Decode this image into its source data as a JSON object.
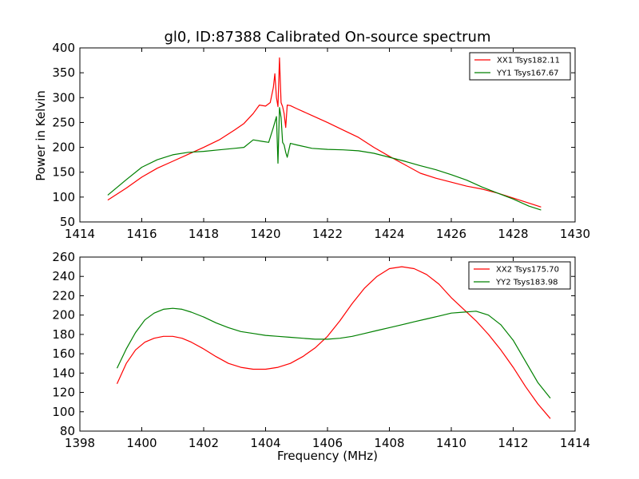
{
  "chart_data": [
    {
      "type": "line",
      "title": "gl0, ID:87388 Calibrated On-source spectrum",
      "xlabel": "",
      "ylabel": "Power in Kelvin",
      "xlim": [
        1414,
        1430
      ],
      "ylim": [
        50,
        400
      ],
      "xticks": [
        1414,
        1416,
        1418,
        1420,
        1422,
        1424,
        1426,
        1428,
        1430
      ],
      "yticks": [
        50,
        100,
        150,
        200,
        250,
        300,
        350,
        400
      ],
      "legend_position": "top-right",
      "grid": false,
      "series": [
        {
          "name": "XX1 Tsys182.11",
          "color": "#ff0000",
          "x": [
            1414.9,
            1415.5,
            1416.0,
            1416.5,
            1417.0,
            1417.5,
            1418.0,
            1418.5,
            1419.0,
            1419.3,
            1419.6,
            1419.8,
            1420.0,
            1420.15,
            1420.25,
            1420.3,
            1420.35,
            1420.4,
            1420.45,
            1420.5,
            1420.55,
            1420.6,
            1420.65,
            1420.7,
            1420.8,
            1421.0,
            1421.5,
            1422.0,
            1422.5,
            1423.0,
            1423.5,
            1424.0,
            1424.5,
            1425.0,
            1425.5,
            1426.0,
            1426.5,
            1427.0,
            1427.5,
            1428.0,
            1428.5,
            1428.9
          ],
          "y": [
            94,
            118,
            140,
            158,
            172,
            186,
            200,
            215,
            235,
            248,
            268,
            285,
            283,
            290,
            320,
            348,
            300,
            282,
            380,
            290,
            282,
            268,
            240,
            285,
            284,
            278,
            264,
            250,
            235,
            220,
            200,
            182,
            165,
            148,
            138,
            130,
            122,
            116,
            108,
            98,
            88,
            80
          ]
        },
        {
          "name": "YY1 Tsys167.67",
          "color": "#008000",
          "x": [
            1414.9,
            1415.5,
            1416.0,
            1416.5,
            1417.0,
            1417.5,
            1418.0,
            1418.5,
            1419.0,
            1419.3,
            1419.6,
            1419.9,
            1420.1,
            1420.25,
            1420.35,
            1420.4,
            1420.45,
            1420.5,
            1420.55,
            1420.6,
            1420.65,
            1420.7,
            1420.8,
            1421.0,
            1421.5,
            1422.0,
            1422.5,
            1423.0,
            1423.5,
            1424.0,
            1424.5,
            1425.0,
            1425.5,
            1426.0,
            1426.5,
            1427.0,
            1427.5,
            1428.0,
            1428.5,
            1428.9
          ],
          "y": [
            104,
            135,
            160,
            175,
            185,
            190,
            192,
            195,
            198,
            200,
            215,
            212,
            210,
            240,
            262,
            168,
            280,
            260,
            210,
            205,
            190,
            180,
            208,
            205,
            198,
            196,
            195,
            193,
            188,
            180,
            172,
            163,
            155,
            145,
            134,
            120,
            108,
            96,
            82,
            74
          ]
        }
      ]
    },
    {
      "type": "line",
      "title": "",
      "xlabel": "Frequency (MHz)",
      "ylabel": "",
      "xlim": [
        1398,
        1414
      ],
      "ylim": [
        80,
        260
      ],
      "xticks": [
        1398,
        1400,
        1402,
        1404,
        1406,
        1408,
        1410,
        1412,
        1414
      ],
      "yticks": [
        80,
        100,
        120,
        140,
        160,
        180,
        200,
        220,
        240,
        260
      ],
      "legend_position": "top-right",
      "grid": false,
      "series": [
        {
          "name": "XX2 Tsys175.70",
          "color": "#ff0000",
          "x": [
            1399.2,
            1399.5,
            1399.8,
            1400.1,
            1400.4,
            1400.7,
            1401.0,
            1401.3,
            1401.6,
            1402.0,
            1402.4,
            1402.8,
            1403.2,
            1403.6,
            1404.0,
            1404.4,
            1404.8,
            1405.2,
            1405.6,
            1406.0,
            1406.4,
            1406.8,
            1407.2,
            1407.6,
            1408.0,
            1408.4,
            1408.8,
            1409.2,
            1409.6,
            1410.0,
            1410.4,
            1410.8,
            1411.2,
            1411.6,
            1412.0,
            1412.4,
            1412.8,
            1413.2
          ],
          "y": [
            129,
            150,
            164,
            172,
            176,
            178,
            178,
            176,
            172,
            165,
            157,
            150,
            146,
            144,
            144,
            146,
            150,
            157,
            166,
            178,
            194,
            212,
            228,
            240,
            248,
            250,
            248,
            242,
            232,
            218,
            206,
            194,
            180,
            164,
            146,
            126,
            108,
            93
          ]
        },
        {
          "name": "YY2 Tsys183.98",
          "color": "#008000",
          "x": [
            1399.2,
            1399.5,
            1399.8,
            1400.1,
            1400.4,
            1400.7,
            1401.0,
            1401.3,
            1401.6,
            1402.0,
            1402.4,
            1402.8,
            1403.2,
            1403.6,
            1404.0,
            1404.4,
            1404.8,
            1405.2,
            1405.6,
            1406.0,
            1406.4,
            1406.8,
            1407.2,
            1407.6,
            1408.0,
            1408.4,
            1408.8,
            1409.2,
            1409.6,
            1410.0,
            1410.4,
            1410.8,
            1411.2,
            1411.6,
            1412.0,
            1412.4,
            1412.8,
            1413.2
          ],
          "y": [
            145,
            165,
            182,
            195,
            202,
            206,
            207,
            206,
            203,
            198,
            192,
            187,
            183,
            181,
            179,
            178,
            177,
            176,
            175,
            175,
            176,
            178,
            181,
            184,
            187,
            190,
            193,
            196,
            199,
            202,
            203,
            204,
            200,
            190,
            174,
            152,
            130,
            114
          ]
        }
      ]
    }
  ]
}
